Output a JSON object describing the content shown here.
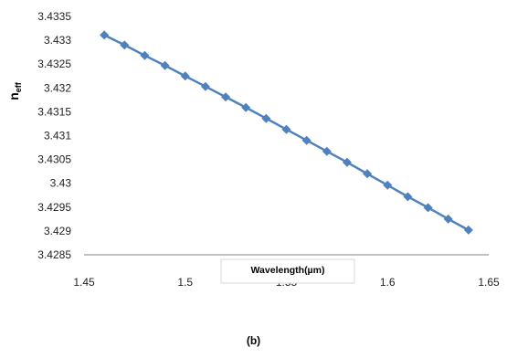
{
  "chart_data": {
    "type": "line",
    "xlabel": "Wavelength(µm)",
    "ylabel": "n",
    "ylabel_subscript": "eff",
    "xlim": [
      1.45,
      1.65
    ],
    "ylim": [
      3.4285,
      3.4335
    ],
    "x_ticks": [
      "1.45",
      "1.5",
      "1.55",
      "1.6",
      "1.65"
    ],
    "y_ticks": [
      "3.4285",
      "3.429",
      "3.4295",
      "3.43",
      "3.4305",
      "3.431",
      "3.4315",
      "3.432",
      "3.4325",
      "3.433",
      "3.4335"
    ],
    "grid": false,
    "legend": "none",
    "series": [
      {
        "marker": "diamond",
        "color": "#4f81bd",
        "x": [
          1.46,
          1.47,
          1.48,
          1.49,
          1.5,
          1.51,
          1.52,
          1.53,
          1.54,
          1.55,
          1.56,
          1.57,
          1.58,
          1.59,
          1.6,
          1.61,
          1.62,
          1.63,
          1.64
        ],
        "y": [
          3.43311,
          3.4329,
          3.43268,
          3.43247,
          3.43225,
          3.43203,
          3.43181,
          3.43159,
          3.43136,
          3.43113,
          3.4309,
          3.43067,
          3.43044,
          3.4302,
          3.42996,
          3.42972,
          3.42949,
          3.42925,
          3.42902
        ]
      }
    ]
  },
  "caption": "(b)"
}
